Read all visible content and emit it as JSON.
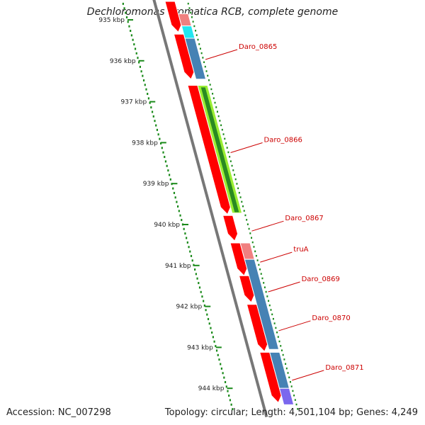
{
  "header": {
    "title": "Dechloromonas aromatica RCB, complete genome"
  },
  "footer": {
    "accession": "Accession: NC_007298",
    "summary": "Topology: circular; Length: 4,501,104 bp; Genes: 4,249"
  },
  "scale": {
    "ticks": [
      {
        "kbp": 935,
        "label": "935 kbp"
      },
      {
        "kbp": 936,
        "label": "936 kbp"
      },
      {
        "kbp": 937,
        "label": "937 kbp"
      },
      {
        "kbp": 938,
        "label": "938 kbp"
      },
      {
        "kbp": 939,
        "label": "939 kbp"
      },
      {
        "kbp": 940,
        "label": "940 kbp"
      },
      {
        "kbp": 941,
        "label": "941 kbp"
      },
      {
        "kbp": 942,
        "label": "942 kbp"
      },
      {
        "kbp": 943,
        "label": "943 kbp"
      },
      {
        "kbp": 944,
        "label": "944 kbp"
      }
    ]
  },
  "colors": {
    "backbone": "#777777",
    "cds": "#ff0000",
    "scale": "#1a8a1a",
    "label": "#cc0000",
    "steel_blue": "#4682b4",
    "cyan": "#22e6f0",
    "light_green": "#9aee33",
    "dark_green": "#2a8a22",
    "salmon": "#f08080",
    "purple": "#7b68ee"
  },
  "genes": [
    {
      "name": "Daro_0865",
      "start": 935.35,
      "end": 936.45,
      "strand": "+"
    },
    {
      "name": "Daro_0866",
      "start": 936.6,
      "end": 939.75,
      "strand": "+"
    },
    {
      "name": "Daro_0867",
      "start": 939.78,
      "end": 940.4,
      "strand": "+"
    },
    {
      "name": "truA",
      "start": 940.45,
      "end": 941.25,
      "strand": "+"
    },
    {
      "name": "Daro_0869",
      "start": 941.25,
      "end": 941.9,
      "strand": "+"
    },
    {
      "name": "Daro_0870",
      "start": 941.95,
      "end": 943.1,
      "strand": "+"
    },
    {
      "name": "Daro_0871",
      "start": 943.12,
      "end": 944.35,
      "strand": "+"
    }
  ],
  "features": [
    {
      "start": 934.85,
      "end": 935.15,
      "color": "#f08080"
    },
    {
      "start": 935.15,
      "end": 935.45,
      "color": "#22e6f0"
    },
    {
      "start": 935.45,
      "end": 936.45,
      "color": "#4682b4"
    },
    {
      "start": 936.6,
      "end": 939.72,
      "color": "#9aee33"
    },
    {
      "start": 940.45,
      "end": 940.85,
      "color": "#f08080"
    },
    {
      "start": 940.85,
      "end": 943.05,
      "color": "#4682b4"
    },
    {
      "start": 943.12,
      "end": 944.0,
      "color": "#4682b4"
    },
    {
      "start": 944.0,
      "end": 944.4,
      "color": "#7b68ee"
    }
  ]
}
